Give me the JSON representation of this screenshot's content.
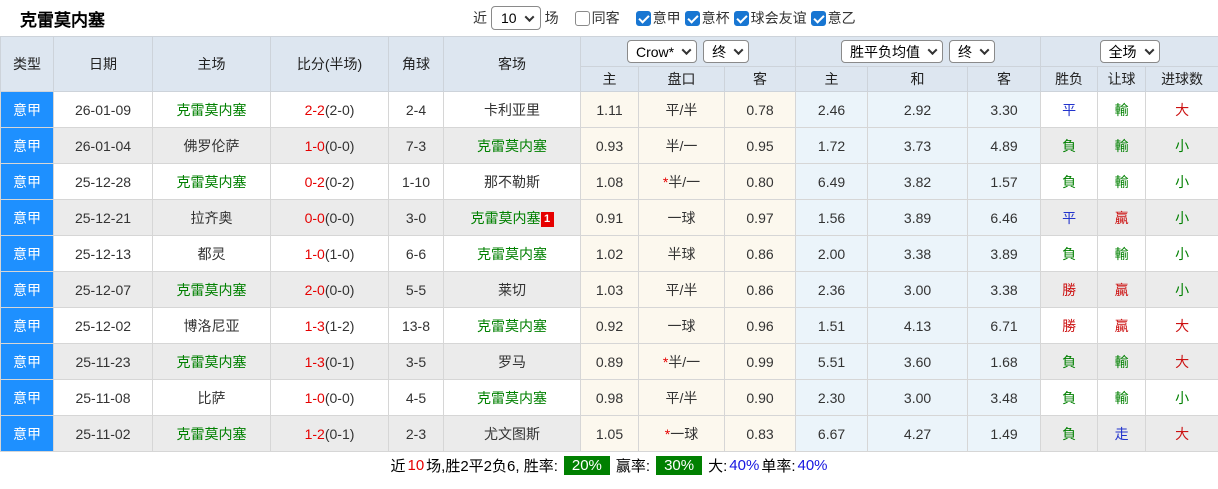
{
  "title": "克雷莫内塞",
  "filter_bar": {
    "recent_label": "近",
    "match_count": "10",
    "games_label": "场",
    "same_away": {
      "label": "同客",
      "checked": false
    },
    "leagues": [
      {
        "label": "意甲",
        "checked": true
      },
      {
        "label": "意杯",
        "checked": true
      },
      {
        "label": "球会友谊",
        "checked": true
      },
      {
        "label": "意乙",
        "checked": true
      }
    ]
  },
  "table": {
    "left_headers": [
      "类型",
      "日期",
      "主场",
      "比分(半场)",
      "角球",
      "客场"
    ],
    "controls": {
      "odds_company": "Crow*",
      "odds_time": "终",
      "avg_type": "胜平负均值",
      "avg_time": "终",
      "scope": "全场"
    },
    "sub_headers": [
      "主",
      "盘口",
      "客",
      "主",
      "和",
      "客",
      "胜负",
      "让球",
      "进球数"
    ],
    "rows": [
      {
        "league": "意甲",
        "date": "26-01-09",
        "home": "克雷莫内塞",
        "home_green": true,
        "score": "2-2",
        "half": "(2-0)",
        "corners": "2-4",
        "away": "卡利亚里",
        "away_green": false,
        "away_badge": "",
        "crow_home": "1.11",
        "handicap": "平/半",
        "handicap_star": false,
        "crow_away": "0.78",
        "avg_home": "2.46",
        "avg_draw": "2.92",
        "avg_away": "3.30",
        "result": "平",
        "result_color": "blue",
        "handicap_result": "輸",
        "handicap_result_color": "green",
        "goals": "大",
        "goals_color": "red"
      },
      {
        "league": "意甲",
        "date": "26-01-04",
        "home": "佛罗伦萨",
        "home_green": false,
        "score": "1-0",
        "half": "(0-0)",
        "corners": "7-3",
        "away": "克雷莫内塞",
        "away_green": true,
        "away_badge": "",
        "crow_home": "0.93",
        "handicap": "半/一",
        "handicap_star": false,
        "crow_away": "0.95",
        "avg_home": "1.72",
        "avg_draw": "3.73",
        "avg_away": "4.89",
        "result": "負",
        "result_color": "green",
        "handicap_result": "輸",
        "handicap_result_color": "green",
        "goals": "小",
        "goals_color": "green"
      },
      {
        "league": "意甲",
        "date": "25-12-28",
        "home": "克雷莫内塞",
        "home_green": true,
        "score": "0-2",
        "half": "(0-2)",
        "corners": "1-10",
        "away": "那不勒斯",
        "away_green": false,
        "away_badge": "",
        "crow_home": "1.08",
        "handicap": "半/一",
        "handicap_star": true,
        "crow_away": "0.80",
        "avg_home": "6.49",
        "avg_draw": "3.82",
        "avg_away": "1.57",
        "result": "負",
        "result_color": "green",
        "handicap_result": "輸",
        "handicap_result_color": "green",
        "goals": "小",
        "goals_color": "green"
      },
      {
        "league": "意甲",
        "date": "25-12-21",
        "home": "拉齐奥",
        "home_green": false,
        "score": "0-0",
        "half": "(0-0)",
        "corners": "3-0",
        "away": "克雷莫内塞",
        "away_green": true,
        "away_badge": "1",
        "crow_home": "0.91",
        "handicap": "一球",
        "handicap_star": false,
        "crow_away": "0.97",
        "avg_home": "1.56",
        "avg_draw": "3.89",
        "avg_away": "6.46",
        "result": "平",
        "result_color": "blue",
        "handicap_result": "贏",
        "handicap_result_color": "red",
        "goals": "小",
        "goals_color": "green"
      },
      {
        "league": "意甲",
        "date": "25-12-13",
        "home": "都灵",
        "home_green": false,
        "score": "1-0",
        "half": "(1-0)",
        "corners": "6-6",
        "away": "克雷莫内塞",
        "away_green": true,
        "away_badge": "",
        "crow_home": "1.02",
        "handicap": "半球",
        "handicap_star": false,
        "crow_away": "0.86",
        "avg_home": "2.00",
        "avg_draw": "3.38",
        "avg_away": "3.89",
        "result": "負",
        "result_color": "green",
        "handicap_result": "輸",
        "handicap_result_color": "green",
        "goals": "小",
        "goals_color": "green"
      },
      {
        "league": "意甲",
        "date": "25-12-07",
        "home": "克雷莫内塞",
        "home_green": true,
        "score": "2-0",
        "half": "(0-0)",
        "corners": "5-5",
        "away": "莱切",
        "away_green": false,
        "away_badge": "",
        "crow_home": "1.03",
        "handicap": "平/半",
        "handicap_star": false,
        "crow_away": "0.86",
        "avg_home": "2.36",
        "avg_draw": "3.00",
        "avg_away": "3.38",
        "result": "勝",
        "result_color": "red",
        "handicap_result": "贏",
        "handicap_result_color": "red",
        "goals": "小",
        "goals_color": "green"
      },
      {
        "league": "意甲",
        "date": "25-12-02",
        "home": "博洛尼亚",
        "home_green": false,
        "score": "1-3",
        "half": "(1-2)",
        "corners": "13-8",
        "away": "克雷莫内塞",
        "away_green": true,
        "away_badge": "",
        "crow_home": "0.92",
        "handicap": "一球",
        "handicap_star": false,
        "crow_away": "0.96",
        "avg_home": "1.51",
        "avg_draw": "4.13",
        "avg_away": "6.71",
        "result": "勝",
        "result_color": "red",
        "handicap_result": "贏",
        "handicap_result_color": "red",
        "goals": "大",
        "goals_color": "red"
      },
      {
        "league": "意甲",
        "date": "25-11-23",
        "home": "克雷莫内塞",
        "home_green": true,
        "score": "1-3",
        "half": "(0-1)",
        "corners": "3-5",
        "away": "罗马",
        "away_green": false,
        "away_badge": "",
        "crow_home": "0.89",
        "handicap": "半/一",
        "handicap_star": true,
        "crow_away": "0.99",
        "avg_home": "5.51",
        "avg_draw": "3.60",
        "avg_away": "1.68",
        "result": "負",
        "result_color": "green",
        "handicap_result": "輸",
        "handicap_result_color": "green",
        "goals": "大",
        "goals_color": "red"
      },
      {
        "league": "意甲",
        "date": "25-11-08",
        "home": "比萨",
        "home_green": false,
        "score": "1-0",
        "half": "(0-0)",
        "corners": "4-5",
        "away": "克雷莫内塞",
        "away_green": true,
        "away_badge": "",
        "crow_home": "0.98",
        "handicap": "平/半",
        "handicap_star": false,
        "crow_away": "0.90",
        "avg_home": "2.30",
        "avg_draw": "3.00",
        "avg_away": "3.48",
        "result": "負",
        "result_color": "green",
        "handicap_result": "輸",
        "handicap_result_color": "green",
        "goals": "小",
        "goals_color": "green"
      },
      {
        "league": "意甲",
        "date": "25-11-02",
        "home": "克雷莫内塞",
        "home_green": true,
        "score": "1-2",
        "half": "(0-1)",
        "corners": "2-3",
        "away": "尤文图斯",
        "away_green": false,
        "away_badge": "",
        "crow_home": "1.05",
        "handicap": "一球",
        "handicap_star": true,
        "crow_away": "0.83",
        "avg_home": "6.67",
        "avg_draw": "4.27",
        "avg_away": "1.49",
        "result": "負",
        "result_color": "green",
        "handicap_result": "走",
        "handicap_result_color": "blue",
        "goals": "大",
        "goals_color": "red"
      }
    ]
  },
  "footer": {
    "part1": "近",
    "count": "10",
    "part2": "场,胜2平2负6, 胜率:",
    "win_rate": "20%",
    "part3": "赢率:",
    "profit_rate": "30%",
    "part4": "大:",
    "big_rate": "40%",
    "part5": "单率:",
    "single_rate": "40%"
  },
  "colors": {
    "league_cell_blue": "#1e90ff",
    "team_green": "#008000",
    "score_red": "#e60000",
    "result_red": "#cc1111",
    "result_green": "#008000",
    "result_blue": "#2233cc",
    "odds_column_bg": "#fcf8ee",
    "avg_column_bg": "#ebf4fa",
    "header_bg": "#dde6f0",
    "row_alt_bg": "#ebebeb",
    "footer_badge_green": "#008000",
    "footer_rate_blue": "#1616e0",
    "checkbox_blue": "#1876d2"
  }
}
